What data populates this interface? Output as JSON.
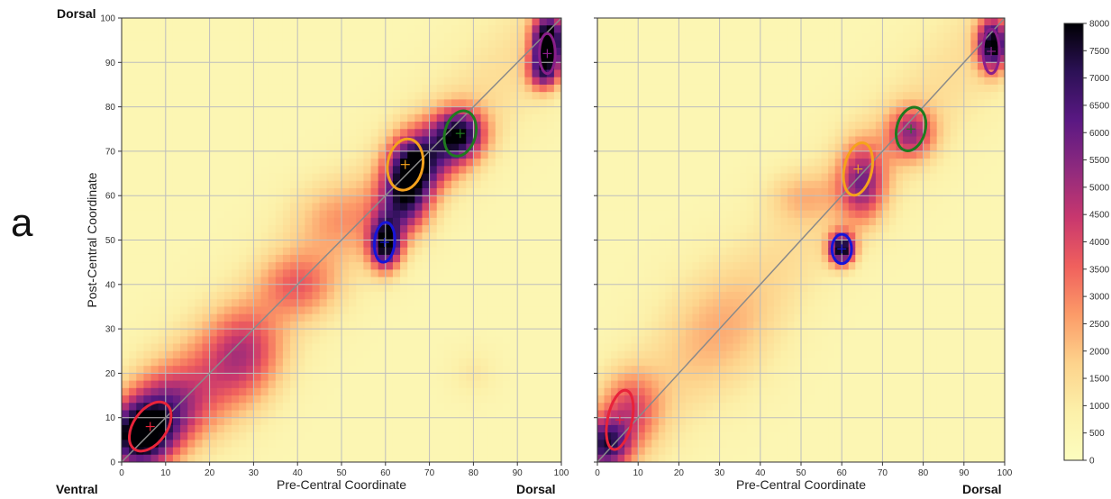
{
  "figure": {
    "panel_label": "a",
    "corner_labels": {
      "top_left": "Dorsal",
      "bottom_left": "Ventral",
      "bottom_right_1": "Dorsal",
      "bottom_right_2": "Dorsal"
    }
  },
  "colors": {
    "background_low": "#fcf3b4",
    "colormap": [
      "#fcfdbf",
      "#fcf0a9",
      "#fdd38c",
      "#fc9b68",
      "#f0605d",
      "#c8376e",
      "#8f2a7e",
      "#5a1883",
      "#2c1156",
      "#000004"
    ],
    "diagonal": "#8a8a8a",
    "grid": "#bdbdbd",
    "centroid_red": "#e8233a",
    "centroid_blue": "#1515d8",
    "centroid_orange": "#f5a21c",
    "centroid_green": "#1f7a1f",
    "centroid_purple": "#8a1e8a"
  },
  "chart_data": [
    {
      "type": "heatmap",
      "panel": "left",
      "title": "",
      "xlabel": "Pre-Central Coordinate",
      "ylabel": "Post-Central Coordinate",
      "xlim": [
        0,
        100
      ],
      "ylim": [
        0,
        100
      ],
      "xticks": [
        0,
        10,
        20,
        30,
        40,
        50,
        60,
        70,
        80,
        90,
        100
      ],
      "yticks": [
        0,
        10,
        20,
        30,
        40,
        50,
        60,
        70,
        80,
        90,
        100
      ],
      "grid": true,
      "diagonal_line": {
        "from": [
          0,
          0
        ],
        "to": [
          100,
          100
        ]
      },
      "density_blobs": [
        {
          "x": 4,
          "y": 6,
          "sx": 5,
          "sy": 5,
          "w": 0.9
        },
        {
          "x": 10,
          "y": 12,
          "sx": 6,
          "sy": 6,
          "w": 0.45
        },
        {
          "x": 28,
          "y": 25,
          "sx": 6,
          "sy": 7,
          "w": 0.35
        },
        {
          "x": 40,
          "y": 40,
          "sx": 6,
          "sy": 5,
          "w": 0.28
        },
        {
          "x": 60,
          "y": 49,
          "sx": 2.5,
          "sy": 4,
          "w": 0.85
        },
        {
          "x": 66,
          "y": 66,
          "sx": 4,
          "sy": 5,
          "w": 0.75
        },
        {
          "x": 64,
          "y": 58,
          "sx": 4,
          "sy": 5,
          "w": 0.55
        },
        {
          "x": 77,
          "y": 74,
          "sx": 4,
          "sy": 4,
          "w": 0.7
        },
        {
          "x": 72,
          "y": 70,
          "sx": 5,
          "sy": 5,
          "w": 0.35
        },
        {
          "x": 97,
          "y": 95,
          "sx": 2.5,
          "sy": 4,
          "w": 1.0
        },
        {
          "x": 96,
          "y": 88,
          "sx": 2.5,
          "sy": 3,
          "w": 0.6
        },
        {
          "x": 50,
          "y": 55,
          "sx": 8,
          "sy": 6,
          "w": 0.18
        },
        {
          "x": 20,
          "y": 18,
          "sx": 8,
          "sy": 8,
          "w": 0.2
        },
        {
          "x": 80,
          "y": 20,
          "sx": 4,
          "sy": 4,
          "w": 0.08
        }
      ],
      "clusters": [
        {
          "name": "red",
          "cx": 6.5,
          "cy": 8,
          "rx": 3.8,
          "ry": 6.2,
          "angle": -35
        },
        {
          "name": "blue",
          "cx": 59.8,
          "cy": 49.5,
          "rx": 2.3,
          "ry": 4.5,
          "angle": -5
        },
        {
          "name": "orange",
          "cx": 64.5,
          "cy": 67,
          "rx": 4,
          "ry": 5.8,
          "angle": -10
        },
        {
          "name": "green",
          "cx": 77,
          "cy": 74,
          "rx": 3.5,
          "ry": 5.2,
          "angle": -15
        },
        {
          "name": "purple",
          "cx": 96.8,
          "cy": 92,
          "rx": 1.8,
          "ry": 4.5,
          "angle": 0
        }
      ]
    },
    {
      "type": "heatmap",
      "panel": "right",
      "title": "",
      "xlabel": "Pre-Central Coordinate",
      "ylabel": "",
      "xlim": [
        0,
        100
      ],
      "ylim": [
        0,
        100
      ],
      "xticks": [
        0,
        10,
        20,
        30,
        40,
        50,
        60,
        70,
        80,
        90,
        100
      ],
      "grid": true,
      "diagonal_line": {
        "from": [
          0,
          0
        ],
        "to": [
          100,
          100
        ]
      },
      "density_blobs": [
        {
          "x": 2,
          "y": 4,
          "sx": 4,
          "sy": 4,
          "w": 0.7
        },
        {
          "x": 8,
          "y": 12,
          "sx": 5,
          "sy": 6,
          "w": 0.35
        },
        {
          "x": 60,
          "y": 48,
          "sx": 2.2,
          "sy": 2.5,
          "w": 0.9
        },
        {
          "x": 65,
          "y": 63,
          "sx": 4,
          "sy": 6,
          "w": 0.55
        },
        {
          "x": 77,
          "y": 74,
          "sx": 4,
          "sy": 4,
          "w": 0.5
        },
        {
          "x": 97,
          "y": 94,
          "sx": 2.5,
          "sy": 4,
          "w": 0.9
        },
        {
          "x": 50,
          "y": 60,
          "sx": 6,
          "sy": 4,
          "w": 0.15
        },
        {
          "x": 30,
          "y": 30,
          "sx": 10,
          "sy": 10,
          "w": 0.12
        }
      ],
      "clusters": [
        {
          "name": "red",
          "cx": 5.5,
          "cy": 9.5,
          "rx": 3,
          "ry": 6.8,
          "angle": -12
        },
        {
          "name": "blue",
          "cx": 60,
          "cy": 48,
          "rx": 2.4,
          "ry": 3.3,
          "angle": 0
        },
        {
          "name": "orange",
          "cx": 64,
          "cy": 66,
          "rx": 3.4,
          "ry": 6,
          "angle": -12
        },
        {
          "name": "green",
          "cx": 77,
          "cy": 75,
          "rx": 3.5,
          "ry": 5,
          "angle": -15
        },
        {
          "name": "purple",
          "cx": 96.7,
          "cy": 92.5,
          "rx": 2,
          "ry": 5,
          "angle": 0
        }
      ]
    }
  ],
  "colorbar": {
    "min": 0,
    "max": 8000,
    "ticks": [
      0,
      500,
      1000,
      1500,
      2000,
      2500,
      3000,
      3500,
      4000,
      4500,
      5000,
      5500,
      6000,
      6500,
      7000,
      7500,
      8000
    ]
  }
}
